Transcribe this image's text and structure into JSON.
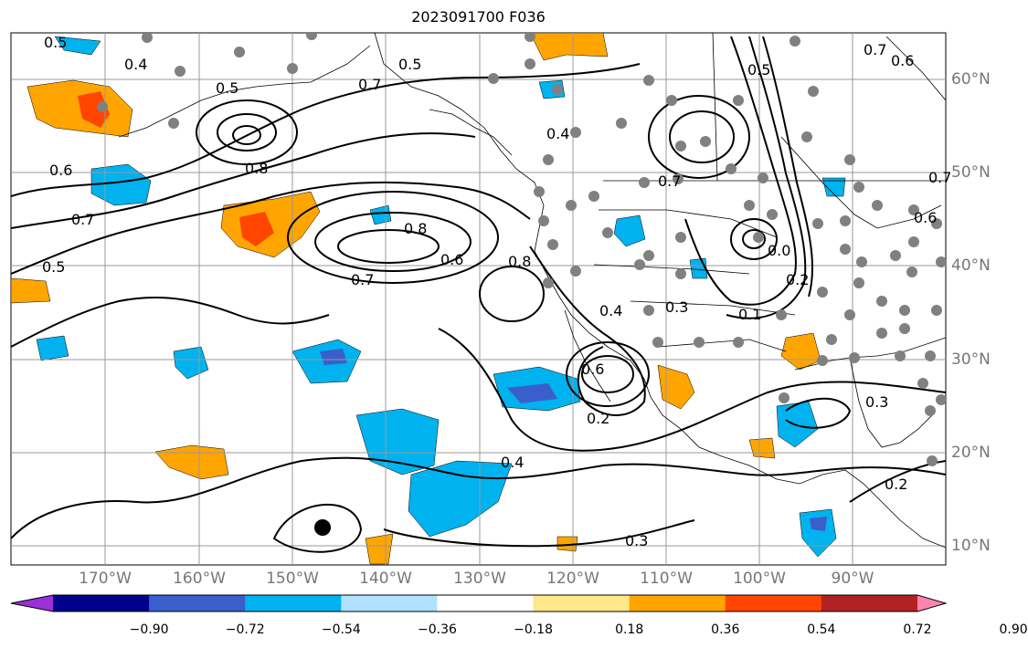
{
  "title": "2023091700 F036",
  "longitude_labels": [
    "170°W",
    "160°W",
    "150°W",
    "140°W",
    "130°W",
    "120°W",
    "110°W",
    "100°W",
    "90°W"
  ],
  "latitude_labels": [
    "60°N",
    "50°N",
    "40°N",
    "30°N",
    "20°N",
    "10°N"
  ],
  "contour_labels": [
    "0.5",
    "0.4",
    "0.5",
    "0.7",
    "0.5",
    "0.7",
    "0.6",
    "0.7",
    "0.6",
    "0.7",
    "0.5",
    "0.8",
    "0.8",
    "0.7",
    "0.6",
    "0.8",
    "0.4",
    "0.3",
    "0.4",
    "0.6",
    "0.2",
    "0.4",
    "0.3",
    "0.3",
    "0.2",
    "0.5",
    "0.2",
    "0.1",
    "0.0",
    "0.6",
    "0.7"
  ],
  "colorbar": {
    "ticks": [
      "−0.90",
      "−0.72",
      "−0.54",
      "−0.36",
      "−0.18",
      "0.18",
      "0.36",
      "0.54",
      "0.72",
      "0.90"
    ],
    "colors": [
      "#9b30d9",
      "#00008b",
      "#3a5fcd",
      "#00b2ee",
      "#b0e2ff",
      "#ffffff",
      "#ffe88a",
      "#ffa500",
      "#ff4500",
      "#b22222",
      "#ff85b0"
    ]
  },
  "colors": {
    "grid": "#999999",
    "coast": "#000000",
    "station": "#808080"
  }
}
